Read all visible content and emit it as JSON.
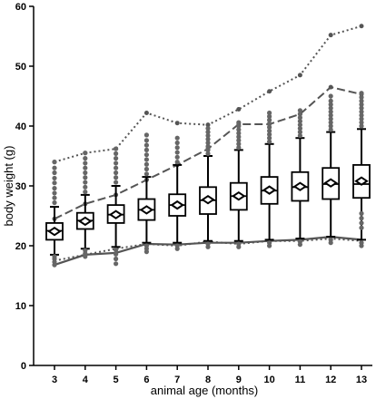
{
  "chart_data": {
    "type": "box",
    "xlabel": "animal age (months)",
    "ylabel": "body weight (g)",
    "ylim": [
      0,
      60
    ],
    "yticks": [
      0,
      10,
      20,
      30,
      40,
      50,
      60
    ],
    "categories": [
      "3",
      "4",
      "5",
      "6",
      "7",
      "8",
      "9",
      "10",
      "11",
      "12",
      "13"
    ],
    "boxes": [
      {
        "age": 3,
        "q1": 21.0,
        "median": 22.5,
        "q3": 23.8,
        "mean": 22.4,
        "whisker_low": 18.5,
        "whisker_high": 26.5
      },
      {
        "age": 4,
        "q1": 22.8,
        "median": 24.2,
        "q3": 25.5,
        "mean": 24.1,
        "whisker_low": 19.5,
        "whisker_high": 28.5
      },
      {
        "age": 5,
        "q1": 23.8,
        "median": 25.2,
        "q3": 26.8,
        "mean": 25.2,
        "whisker_low": 19.8,
        "whisker_high": 30.0
      },
      {
        "age": 6,
        "q1": 24.3,
        "median": 26.0,
        "q3": 27.8,
        "mean": 26.0,
        "whisker_low": 20.5,
        "whisker_high": 31.5
      },
      {
        "age": 7,
        "q1": 25.0,
        "median": 26.8,
        "q3": 28.6,
        "mean": 26.8,
        "whisker_low": 20.5,
        "whisker_high": 33.5
      },
      {
        "age": 8,
        "q1": 25.3,
        "median": 27.6,
        "q3": 29.8,
        "mean": 27.7,
        "whisker_low": 20.8,
        "whisker_high": 35.0
      },
      {
        "age": 9,
        "q1": 26.0,
        "median": 28.3,
        "q3": 30.5,
        "mean": 28.3,
        "whisker_low": 20.8,
        "whisker_high": 36.0
      },
      {
        "age": 10,
        "q1": 27.0,
        "median": 29.2,
        "q3": 31.5,
        "mean": 29.3,
        "whisker_low": 21.0,
        "whisker_high": 37.0
      },
      {
        "age": 11,
        "q1": 27.5,
        "median": 29.8,
        "q3": 32.3,
        "mean": 29.9,
        "whisker_low": 21.2,
        "whisker_high": 38.0
      },
      {
        "age": 12,
        "q1": 27.8,
        "median": 30.3,
        "q3": 33.0,
        "mean": 30.5,
        "whisker_low": 21.5,
        "whisker_high": 39.0
      },
      {
        "age": 13,
        "q1": 28.0,
        "median": 30.3,
        "q3": 33.5,
        "mean": 30.8,
        "whisker_low": 21.0,
        "whisker_high": 39.5
      }
    ],
    "outliers": [
      {
        "age": 3,
        "values": [
          18.2,
          17.8,
          17.3,
          16.8,
          27.2,
          28.0,
          28.8,
          29.6,
          30.5,
          31.3,
          32.2,
          33.0,
          34.0
        ]
      },
      {
        "age": 4,
        "values": [
          19.2,
          18.7,
          18.2,
          29.0,
          29.8,
          30.6,
          31.4,
          32.2,
          33.0,
          33.8,
          34.6,
          35.5
        ]
      },
      {
        "age": 5,
        "values": [
          19.3,
          18.6,
          17.8,
          17.0,
          30.6,
          31.4,
          32.2,
          33.0,
          33.8,
          34.6,
          35.4,
          36.2
        ]
      },
      {
        "age": 6,
        "values": [
          20.0,
          19.5,
          19.0,
          32.0,
          32.8,
          33.6,
          34.4,
          35.2,
          36.0,
          36.8,
          37.6,
          38.5
        ]
      },
      {
        "age": 7,
        "values": [
          20.0,
          19.5,
          34.0,
          34.8,
          35.6,
          36.4,
          37.2,
          38.0
        ]
      },
      {
        "age": 8,
        "values": [
          20.3,
          19.8,
          35.4,
          36.0,
          36.6,
          37.2,
          37.8,
          38.4,
          39.0,
          39.6
        ]
      },
      {
        "age": 9,
        "values": [
          20.3,
          19.8,
          36.4,
          37.0,
          37.6,
          38.2,
          38.8,
          39.4,
          40.0,
          40.6
        ]
      },
      {
        "age": 10,
        "values": [
          20.5,
          20.0,
          37.4,
          38.0,
          38.6,
          39.2,
          39.8,
          40.4,
          41.0,
          41.6,
          42.2
        ]
      },
      {
        "age": 11,
        "values": [
          20.7,
          20.2,
          38.4,
          39.0,
          39.6,
          40.2,
          40.8,
          41.4,
          42.0,
          42.6
        ]
      },
      {
        "age": 12,
        "values": [
          21.0,
          20.5,
          39.4,
          40.0,
          40.6,
          41.2,
          41.8,
          42.4,
          43.0,
          43.6,
          44.2,
          45.0
        ]
      },
      {
        "age": 13,
        "values": [
          20.5,
          20.0,
          23.0,
          23.8,
          24.6,
          25.4,
          40.0,
          40.6,
          41.2,
          41.8,
          42.4,
          43.0,
          43.6,
          44.2,
          44.8,
          45.5
        ]
      }
    ],
    "series": [
      {
        "style": "dotted",
        "x": [
          3,
          4,
          5,
          6,
          7,
          8,
          9,
          10,
          11,
          12,
          13
        ],
        "values": [
          34.0,
          35.5,
          36.2,
          42.2,
          40.5,
          40.2,
          42.8,
          45.8,
          48.5,
          55.2,
          56.7
        ]
      },
      {
        "style": "dashed",
        "x": [
          3,
          4,
          5,
          6,
          7,
          8,
          9,
          10,
          11,
          12,
          13
        ],
        "values": [
          24.5,
          27.0,
          28.5,
          31.0,
          33.5,
          36.2,
          40.3,
          40.3,
          42.0,
          46.5,
          45.3
        ]
      },
      {
        "style": "solid",
        "x": [
          3,
          4,
          5,
          6,
          7,
          8,
          9,
          10,
          11,
          12,
          13
        ],
        "values": [
          16.8,
          18.5,
          18.8,
          20.3,
          20.2,
          20.5,
          20.5,
          20.8,
          21.0,
          21.5,
          21.0
        ]
      },
      {
        "style": "dash-dot",
        "x": [
          3,
          4,
          5,
          6,
          7,
          8,
          9,
          10,
          11,
          12,
          13
        ],
        "values": [
          17.5,
          18.5,
          19.5,
          20.3,
          20.0,
          20.7,
          20.3,
          20.8,
          20.8,
          21.2,
          20.8
        ]
      }
    ],
    "colors": {
      "box_stroke": "#000000",
      "line": "#555555",
      "outlier": "#666666",
      "mean_marker": "#000000"
    },
    "grid": false
  }
}
